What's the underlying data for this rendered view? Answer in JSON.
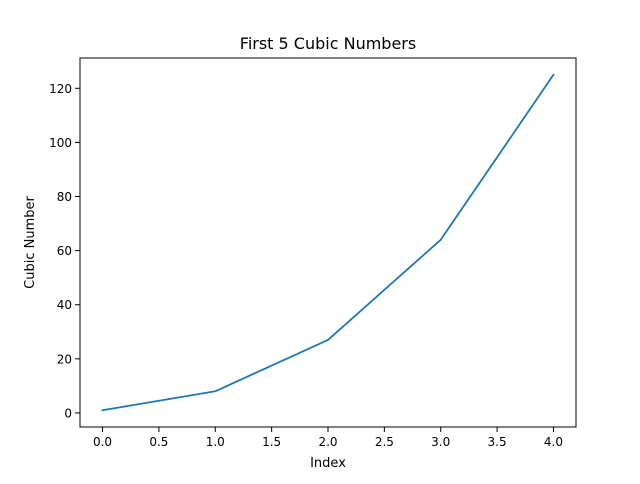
{
  "chart_data": {
    "type": "line",
    "title": "First 5 Cubic Numbers",
    "xlabel": "Index",
    "ylabel": "Cubic Number",
    "xlim": [
      -0.2,
      4.2
    ],
    "ylim": [
      -5.2,
      131.2
    ],
    "xticks": [
      0.0,
      0.5,
      1.0,
      1.5,
      2.0,
      2.5,
      3.0,
      3.5,
      4.0
    ],
    "xtick_labels": [
      "0.0",
      "0.5",
      "1.0",
      "1.5",
      "2.0",
      "2.5",
      "3.0",
      "3.5",
      "4.0"
    ],
    "yticks": [
      0,
      20,
      40,
      60,
      80,
      100,
      120
    ],
    "ytick_labels": [
      "0",
      "20",
      "40",
      "60",
      "80",
      "100",
      "120"
    ],
    "grid": false,
    "series": [
      {
        "x": [
          0,
          1,
          2,
          3,
          4
        ],
        "values": [
          1,
          8,
          27,
          64,
          125
        ],
        "color": "#1f77b4"
      }
    ]
  }
}
